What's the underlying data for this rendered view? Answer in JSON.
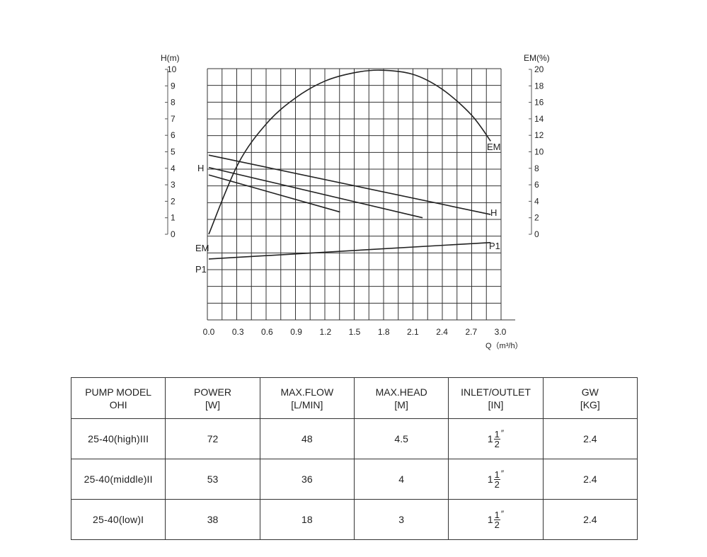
{
  "chart_data": {
    "type": "line",
    "xlabel": "Q（m³/h）",
    "ylabel_left": "H(m)",
    "ylabel_right": "EM(%)",
    "xlim": [
      0.0,
      3.0
    ],
    "ylim_left": [
      0,
      10
    ],
    "ylim_right": [
      0,
      20
    ],
    "x_ticks": [
      "0.0",
      "0.3",
      "0.6",
      "0.9",
      "1.2",
      "1.5",
      "1.8",
      "2.1",
      "2.4",
      "2.7",
      "3.0"
    ],
    "y_left_ticks": [
      "0",
      "1",
      "2",
      "3",
      "4",
      "5",
      "6",
      "7",
      "8",
      "9",
      "10"
    ],
    "y_right_ticks": [
      "0",
      "2",
      "4",
      "6",
      "8",
      "10",
      "12",
      "14",
      "16",
      "18",
      "20"
    ],
    "grid": true,
    "side_labels": [
      "H",
      "EM",
      "P1"
    ],
    "series": [
      {
        "name": "H",
        "axis": "left",
        "x": [
          0.0,
          2.9
        ],
        "y": [
          4.8,
          1.2
        ]
      },
      {
        "name": "",
        "axis": "left",
        "x": [
          0.0,
          2.2
        ],
        "y": [
          4.05,
          1.0
        ]
      },
      {
        "name": "",
        "axis": "left",
        "x": [
          0.0,
          1.35
        ],
        "y": [
          3.6,
          1.35
        ]
      },
      {
        "name": "EM",
        "axis": "right",
        "x": [
          0.0,
          0.3,
          0.6,
          0.9,
          1.2,
          1.5,
          1.77,
          2.1,
          2.4,
          2.7,
          2.9
        ],
        "y": [
          0.0,
          8.5,
          13.5,
          16.6,
          18.6,
          19.6,
          19.9,
          19.4,
          17.6,
          14.5,
          11.3
        ]
      },
      {
        "name": "P1",
        "axis": "left",
        "x": [
          0.0,
          2.9
        ],
        "y": [
          -1.5,
          -0.5
        ]
      }
    ]
  },
  "table": {
    "headers": [
      [
        "PUMP MODEL",
        "OHI"
      ],
      [
        "POWER",
        "[W]"
      ],
      [
        "MAX.FLOW",
        "[L/MIN]"
      ],
      [
        "MAX.HEAD",
        "[M]"
      ],
      [
        "INLET/OUTLET",
        "[IN]"
      ],
      [
        "GW",
        "[KG]"
      ]
    ],
    "rows": [
      {
        "model": "25-40(high)III",
        "power": "72",
        "flow": "48",
        "head": "4.5",
        "inlet_whole": "1",
        "inlet_num": "1",
        "inlet_den": "2",
        "inlet_unit": "″",
        "gw": "2.4"
      },
      {
        "model": "25-40(middle)II",
        "power": "53",
        "flow": "36",
        "head": "4",
        "inlet_whole": "1",
        "inlet_num": "1",
        "inlet_den": "2",
        "inlet_unit": "″",
        "gw": "2.4"
      },
      {
        "model": "25-40(low)I",
        "power": "38",
        "flow": "18",
        "head": "3",
        "inlet_whole": "1",
        "inlet_num": "1",
        "inlet_den": "2",
        "inlet_unit": "″",
        "gw": "2.4"
      }
    ]
  }
}
